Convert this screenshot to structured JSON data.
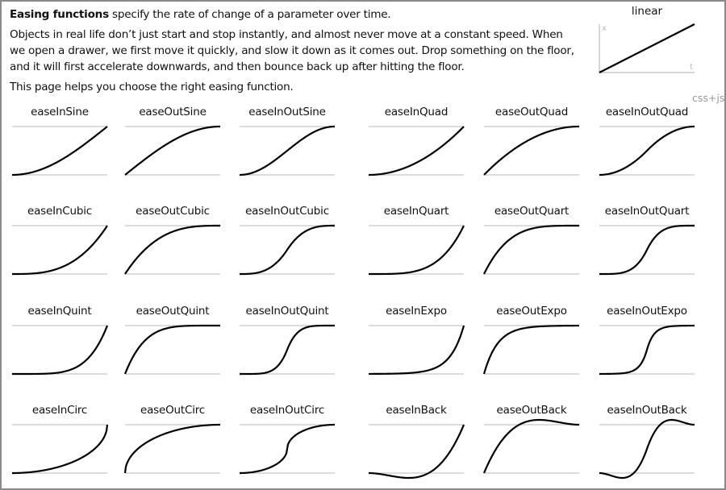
{
  "intro": {
    "lead_bold": "Easing functions",
    "lead_rest": " specify the rate of change of a parameter over time.",
    "paragraph": "Objects in real life don’t just start and stop instantly, and almost never move at a constant speed. When we open a drawer, we first move it quickly, and slow it down as it comes out. Drop something on the floor, and it will first accelerate downwards, and then bounce back up after hitting the floor.",
    "closing": "This page helps you choose the right easing function."
  },
  "linear": {
    "title": "linear",
    "axis_x": "x",
    "axis_t": "t"
  },
  "filter_label": "css+js",
  "easings": [
    "easeInSine",
    "easeOutSine",
    "easeInOutSine",
    "easeInQuad",
    "easeOutQuad",
    "easeInOutQuad",
    "easeInCubic",
    "easeOutCubic",
    "easeInOutCubic",
    "easeInQuart",
    "easeOutQuart",
    "easeInOutQuart",
    "easeInQuint",
    "easeOutQuint",
    "easeInOutQuint",
    "easeInExpo",
    "easeOutExpo",
    "easeInOutExpo",
    "easeInCirc",
    "easeOutCirc",
    "easeInOutCirc",
    "easeInBack",
    "easeOutBack",
    "easeInOutBack"
  ],
  "colors": {
    "curve": "#000000",
    "guide": "#c8c8c8",
    "muted": "#999999"
  }
}
